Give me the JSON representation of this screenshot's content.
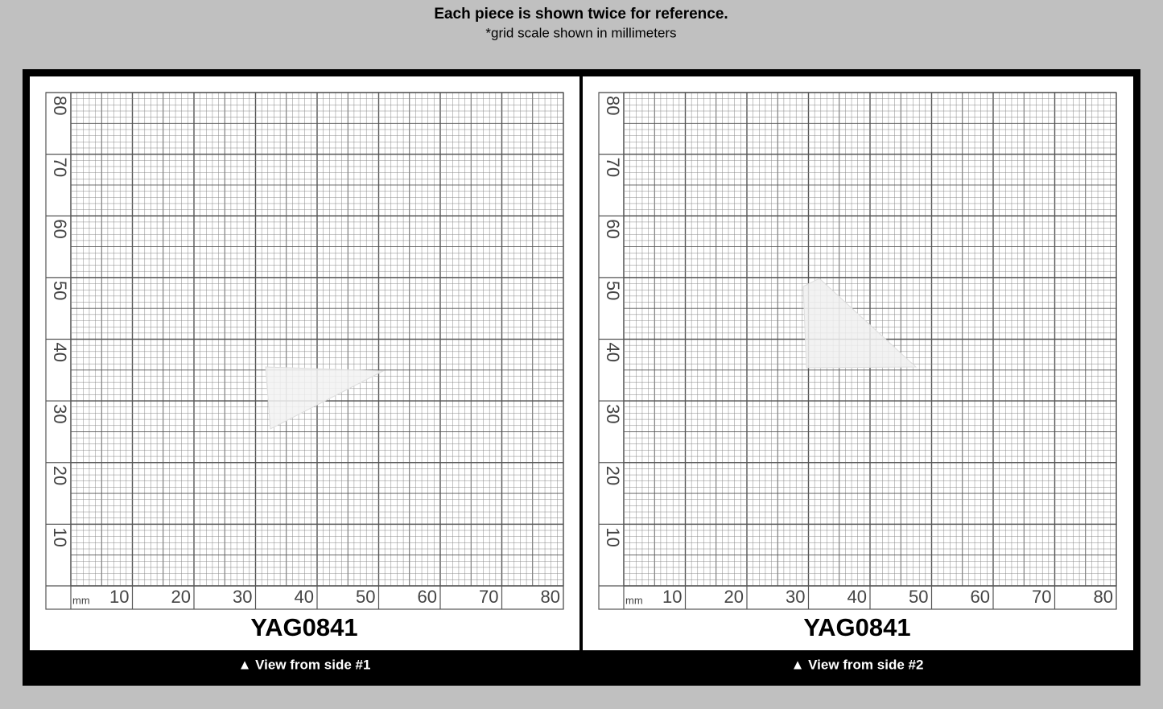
{
  "header": {
    "title": "Each piece is shown twice for reference.",
    "subtitle": "*grid scale shown in millimeters"
  },
  "scale": {
    "unit": "mm",
    "x_labels": [
      10,
      20,
      30,
      40,
      50,
      60,
      70,
      80
    ],
    "y_labels": [
      10,
      20,
      30,
      40,
      50,
      60,
      70,
      80
    ]
  },
  "panels": [
    {
      "title": "YAG0841",
      "caption": "▲ View from side #1"
    },
    {
      "title": "YAG0841",
      "caption": "▲ View from side #2"
    }
  ]
}
